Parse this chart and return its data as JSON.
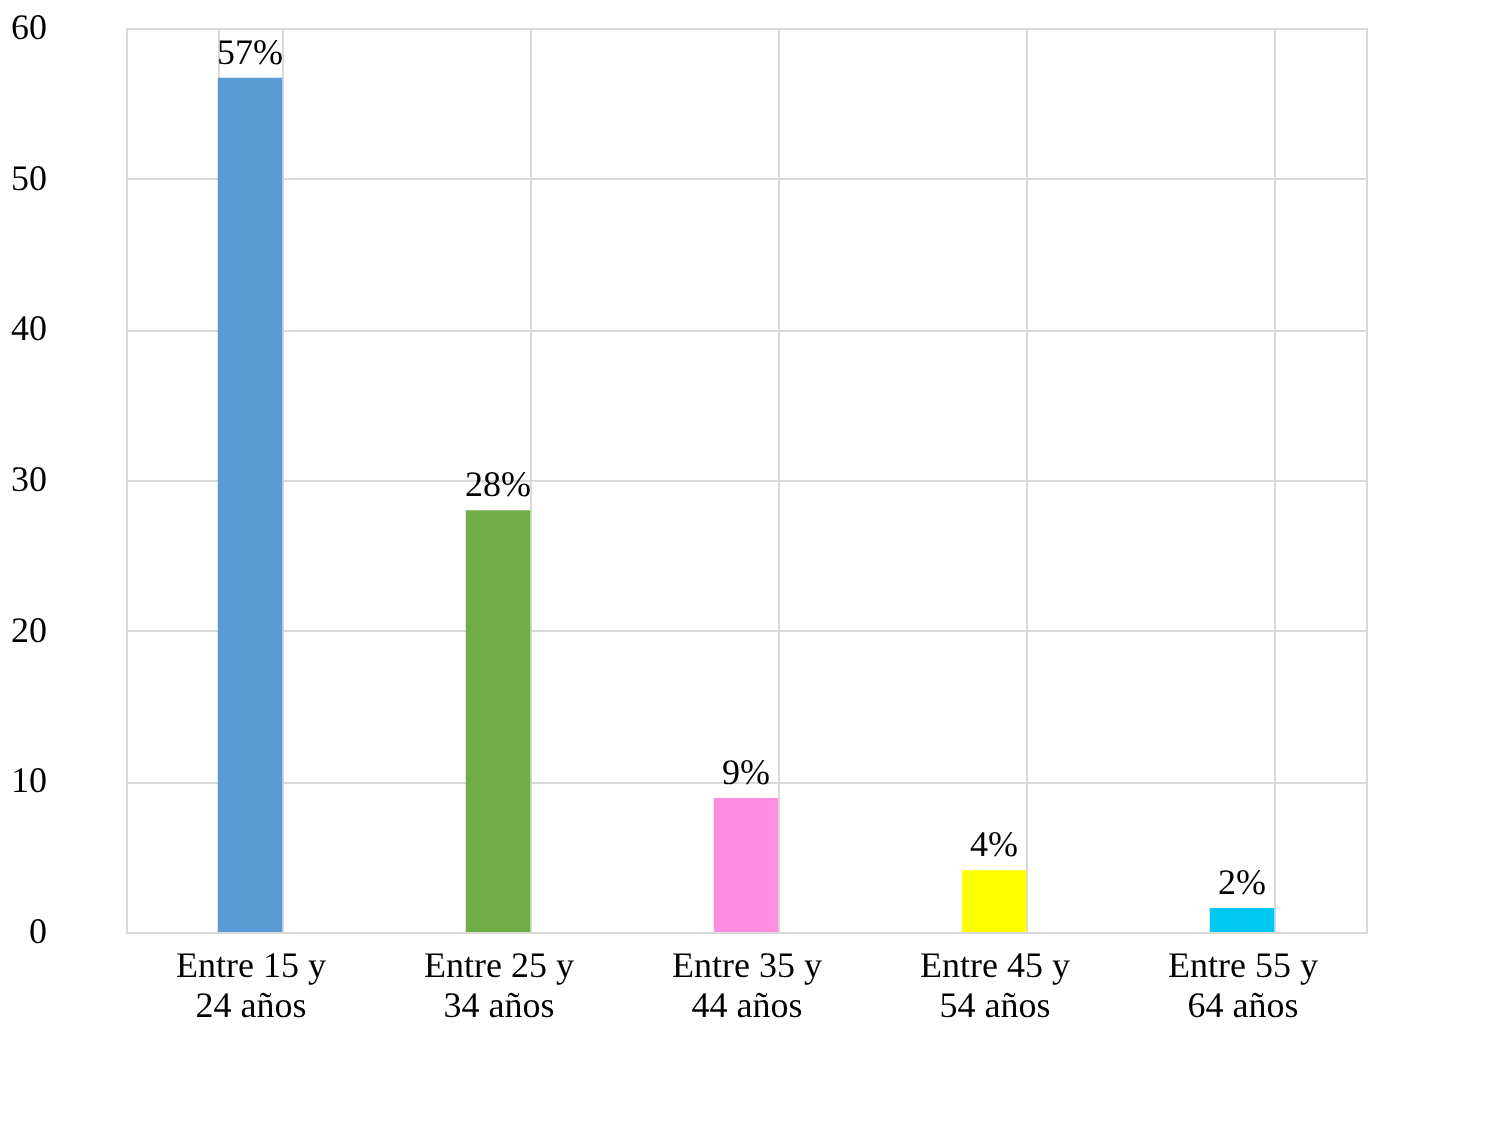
{
  "chart_data": {
    "type": "bar",
    "categories": [
      "Entre 15 y 24 años",
      "Entre 25 y 34 años",
      "Entre 35 y 44 años",
      "Entre 45 y 54 años",
      "Entre 55 y 64 años"
    ],
    "values": [
      56.7,
      28.0,
      8.9,
      4.1,
      1.6
    ],
    "colors": [
      "#5b9bd5",
      "#70ad47",
      "#ff8ee0",
      "#ffff00",
      "#00c8f0"
    ],
    "value_labels": [
      "57%",
      "28%",
      "9%",
      "4%",
      "2%"
    ],
    "ylim": [
      0,
      60
    ],
    "yticks": [
      0,
      10,
      20,
      30,
      40,
      50,
      60
    ],
    "grid": true,
    "legend": false
  }
}
